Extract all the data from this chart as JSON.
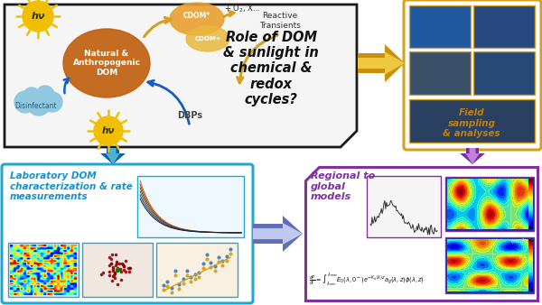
{
  "bg_color": "#ffffff",
  "title_text": "Role of DOM\n& sunlight in\nchemical &\nredox\ncycles?",
  "box1_border": "#1a1a1a",
  "box2_border": "#d4a020",
  "box3_border": "#20a8d0",
  "box4_border": "#8030a0",
  "lab_text": "Laboratory DOM\ncharacterization & rate\nmeasurements",
  "regional_text": "Regional to\nglobal\nmodels",
  "field_text": "Field\nsampling\n& analyses",
  "hv_color": "#f0c000",
  "dom_color": "#c06010",
  "disinfectant_color": "#90c8e0",
  "cdom_star_color": "#e8a030",
  "arrow_gold": "#d4a020",
  "arrow_blue_dark": "#1060a8",
  "arrow_blue_mid": "#3090c8",
  "arrow_blue_light": "#80c0e0",
  "arrow_purple_dark": "#6020a0",
  "arrow_purple_mid": "#9050c0",
  "arrow_purple_light": "#c090e0"
}
